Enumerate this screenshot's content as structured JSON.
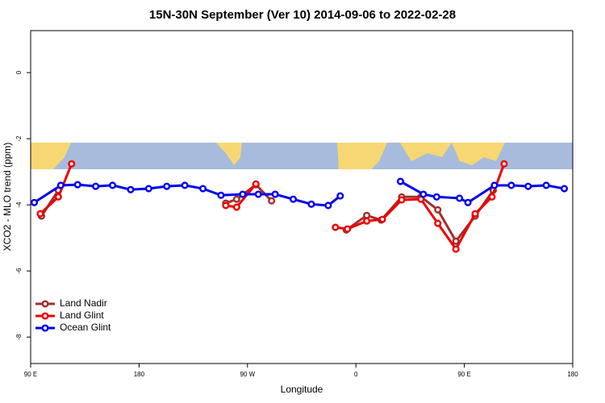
{
  "chart_data": {
    "type": "line",
    "title": "15N-30N September (Ver 10)   2014-09-06 to 2022-02-28",
    "x_label": "Longitude",
    "y_label": "XCO2 - MLO trend (ppm)",
    "xlim": [
      90,
      540
    ],
    "xticks": [
      {
        "value": 90,
        "label": "90 E"
      },
      {
        "value": 180,
        "label": "180"
      },
      {
        "value": 270,
        "label": "90 W"
      },
      {
        "value": 360,
        "label": "0"
      },
      {
        "value": 450,
        "label": "90 E"
      },
      {
        "value": 540,
        "label": "180"
      }
    ],
    "ylim": [
      -8.8,
      1.27
    ],
    "yticks": [
      0,
      -2,
      -4,
      -6,
      -8
    ],
    "legend": "bottom-left",
    "series": [
      {
        "name": "Land Nadir",
        "color": "#a0302e",
        "x": [
          99,
          113,
          180,
          252,
          261,
          277,
          290,
          320,
          352,
          369,
          381,
          398,
          414,
          428,
          443,
          459,
          474
        ],
        "values": [
          -4.34,
          -3.56,
          null,
          -3.95,
          -3.83,
          -3.39,
          -3.88,
          null,
          -4.76,
          -4.32,
          -4.46,
          -3.76,
          -3.76,
          -4.15,
          -5.1,
          -4.34,
          -3.56
        ]
      },
      {
        "name": "Land Glint",
        "color": "#ee0000",
        "x": [
          98,
          113,
          124,
          190,
          252,
          261,
          277,
          310,
          343,
          353,
          369,
          382,
          398,
          414,
          428,
          443,
          459,
          473,
          483
        ],
        "values": [
          -4.27,
          -3.76,
          -2.76,
          null,
          -4.02,
          -4.07,
          -3.37,
          null,
          -4.68,
          -4.73,
          -4.49,
          -4.44,
          -3.85,
          -3.83,
          -4.56,
          -5.34,
          -4.27,
          -3.76,
          -2.76
        ]
      },
      {
        "name": "Ocean Glint",
        "color": "#0000ee",
        "x": [
          93,
          115,
          129,
          144,
          158,
          173,
          188,
          203,
          218,
          233,
          248,
          266,
          279,
          293,
          308,
          323,
          337,
          347,
          372,
          397,
          416,
          427,
          446,
          453,
          475,
          489,
          503,
          518,
          533
        ],
        "values": [
          -3.93,
          -3.41,
          -3.39,
          -3.44,
          -3.41,
          -3.54,
          -3.51,
          -3.44,
          -3.41,
          -3.51,
          -3.71,
          -3.68,
          -3.68,
          -3.68,
          -3.83,
          -3.98,
          -4.02,
          -3.73,
          null,
          -3.29,
          -3.68,
          -3.76,
          -3.8,
          -3.93,
          -3.41,
          -3.41,
          -3.44,
          -3.41,
          -3.51
        ]
      }
    ]
  }
}
